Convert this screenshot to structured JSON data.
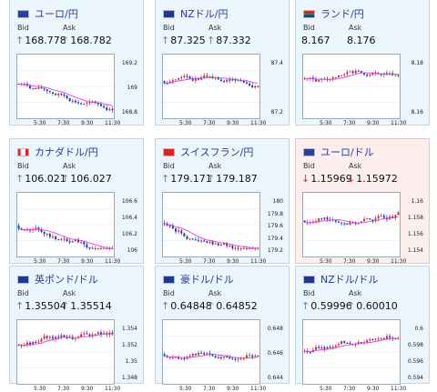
{
  "labels": {
    "bid": "Bid",
    "ask": "Ask"
  },
  "cards": [
    {
      "pair": "ユーロ/円",
      "flag": "eu-flag",
      "dir": "up",
      "bid": "168.778",
      "ask": "168.782",
      "yticks": [
        "169.2",
        "169",
        "168.8"
      ],
      "xticks": [
        "5:30",
        "7:30",
        "9:30",
        "11:30"
      ]
    },
    {
      "pair": "NZドル/円",
      "flag": "nz-flag",
      "dir": "up",
      "bid": "87.325",
      "ask": "87.332",
      "yticks": [
        "87.4",
        "87.2"
      ],
      "xticks": [
        "5:30",
        "7:30",
        "9:30",
        "11:30"
      ]
    },
    {
      "pair": "ランド/円",
      "flag": "za-flag",
      "dir": "none",
      "bid": "8.167",
      "ask": "8.176",
      "yticks": [
        "8.18",
        "8.16"
      ],
      "xticks": [
        "5:30",
        "7:30",
        "9:30",
        "11:30"
      ]
    },
    {
      "pair": "カナダドル/円",
      "flag": "ca-flag",
      "dir": "up",
      "bid": "106.021",
      "ask": "106.027",
      "yticks": [
        "106.6",
        "106.4",
        "106.2",
        "106"
      ],
      "xticks": [
        "5:30",
        "7:30",
        "9:30",
        "11:30"
      ]
    },
    {
      "pair": "スイスフラン/円",
      "flag": "ch-flag",
      "dir": "up",
      "bid": "179.171",
      "ask": "179.187",
      "yticks": [
        "180",
        "179.8",
        "179.6",
        "179.4",
        "179.2"
      ],
      "xticks": [
        "5:30",
        "7:30",
        "9:30",
        "11:30"
      ]
    },
    {
      "pair": "ユーロ/ドル",
      "flag": "eu-flag",
      "dir": "down",
      "bid": "1.15969",
      "ask": "1.15972",
      "yticks": [
        "1.16",
        "1.158",
        "1.156",
        "1.154"
      ],
      "xticks": [
        "5:30",
        "7:30",
        "9:30",
        "11:30"
      ]
    },
    {
      "pair": "英ポンド/ドル",
      "flag": "uk-flag",
      "dir": "up",
      "bid": "1.35504",
      "ask": "1.35514",
      "yticks": [
        "1.354",
        "1.352",
        "1.35",
        "1.348"
      ],
      "xticks": [
        "5:30",
        "7:30",
        "9:30",
        "11:30"
      ]
    },
    {
      "pair": "豪ドル/ドル",
      "flag": "au-flag",
      "dir": "up",
      "bid": "0.64848",
      "ask": "0.64852",
      "yticks": [
        "0.648",
        "0.646",
        "0.644"
      ],
      "xticks": [
        "5:30",
        "7:30",
        "9:30",
        "11:30"
      ]
    },
    {
      "pair": "NZドル/ドル",
      "flag": "nz-flag",
      "dir": "up",
      "bid": "0.59996",
      "ask": "0.60010",
      "yticks": [
        "0.6",
        "0.598",
        "0.596",
        "0.594"
      ],
      "xticks": [
        "5:30",
        "7:30",
        "9:30",
        "11:30"
      ]
    }
  ],
  "colors": {
    "up": "#3a8fd0",
    "down": "#d03030",
    "candle_up": "#d0303a",
    "candle_down": "#2040b0",
    "ma": "#e040e0"
  },
  "arrows": {
    "up": "↑",
    "down": "↓",
    "none": ""
  }
}
